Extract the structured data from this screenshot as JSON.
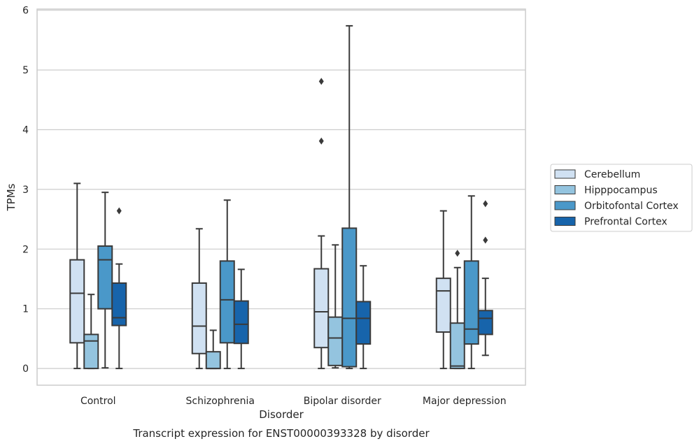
{
  "chart_data": {
    "type": "box",
    "title": "",
    "caption": "Transcript expression for ENST00000393328 by disorder",
    "xlabel": "Disorder",
    "ylabel": "TPMs",
    "ylim": [
      -0.28,
      6.02
    ],
    "yticks": [
      "0",
      "1",
      "2",
      "3",
      "4",
      "5",
      "6"
    ],
    "grid": "horizontal",
    "legend_position": "right",
    "categories": [
      "Control",
      "Schizophrenia",
      "Bipolar disorder",
      "Major depression"
    ],
    "series": [
      {
        "name": "Cerebellum",
        "color": "#d0e1f2",
        "boxes": [
          {
            "whislo": 0.0,
            "q1": 0.43,
            "med": 1.26,
            "q3": 1.82,
            "whishi": 3.1,
            "fliers": []
          },
          {
            "whislo": 0.0,
            "q1": 0.25,
            "med": 0.71,
            "q3": 1.43,
            "whishi": 2.34,
            "fliers": []
          },
          {
            "whislo": 0.0,
            "q1": 0.35,
            "med": 0.95,
            "q3": 1.67,
            "whishi": 2.22,
            "fliers": [
              3.81,
              4.81
            ]
          },
          {
            "whislo": 0.0,
            "q1": 0.61,
            "med": 1.3,
            "q3": 1.51,
            "whishi": 2.64,
            "fliers": []
          }
        ]
      },
      {
        "name": "Hipppocampus",
        "color": "#94c4df",
        "boxes": [
          {
            "whislo": 0.0,
            "q1": 0.0,
            "med": 0.46,
            "q3": 0.57,
            "whishi": 1.24,
            "fliers": []
          },
          {
            "whislo": 0.0,
            "q1": 0.0,
            "med": 0.0,
            "q3": 0.28,
            "whishi": 0.64,
            "fliers": []
          },
          {
            "whislo": 0.01,
            "q1": 0.05,
            "med": 0.51,
            "q3": 0.86,
            "whishi": 2.07,
            "fliers": []
          },
          {
            "whislo": 0.0,
            "q1": 0.0,
            "med": 0.04,
            "q3": 0.76,
            "whishi": 1.69,
            "fliers": [
              1.93
            ]
          }
        ]
      },
      {
        "name": "Orbitofontal Cortex",
        "color": "#4a98c9",
        "boxes": [
          {
            "whislo": 0.01,
            "q1": 1.0,
            "med": 1.82,
            "q3": 2.05,
            "whishi": 2.95,
            "fliers": []
          },
          {
            "whislo": 0.0,
            "q1": 0.43,
            "med": 1.15,
            "q3": 1.8,
            "whishi": 2.82,
            "fliers": []
          },
          {
            "whislo": 0.0,
            "q1": 0.03,
            "med": 0.84,
            "q3": 2.35,
            "whishi": 5.74,
            "fliers": []
          },
          {
            "whislo": 0.0,
            "q1": 0.41,
            "med": 0.66,
            "q3": 1.8,
            "whishi": 2.89,
            "fliers": []
          }
        ]
      },
      {
        "name": "Prefrontal Cortex",
        "color": "#1764ab",
        "boxes": [
          {
            "whislo": 0.0,
            "q1": 0.72,
            "med": 0.85,
            "q3": 1.43,
            "whishi": 1.75,
            "fliers": [
              2.64
            ]
          },
          {
            "whislo": 0.0,
            "q1": 0.42,
            "med": 0.74,
            "q3": 1.13,
            "whishi": 1.66,
            "fliers": []
          },
          {
            "whislo": 0.0,
            "q1": 0.41,
            "med": 0.84,
            "q3": 1.12,
            "whishi": 1.72,
            "fliers": []
          },
          {
            "whislo": 0.22,
            "q1": 0.57,
            "med": 0.84,
            "q3": 0.97,
            "whishi": 1.51,
            "fliers": [
              2.15,
              2.76
            ]
          }
        ]
      }
    ]
  }
}
